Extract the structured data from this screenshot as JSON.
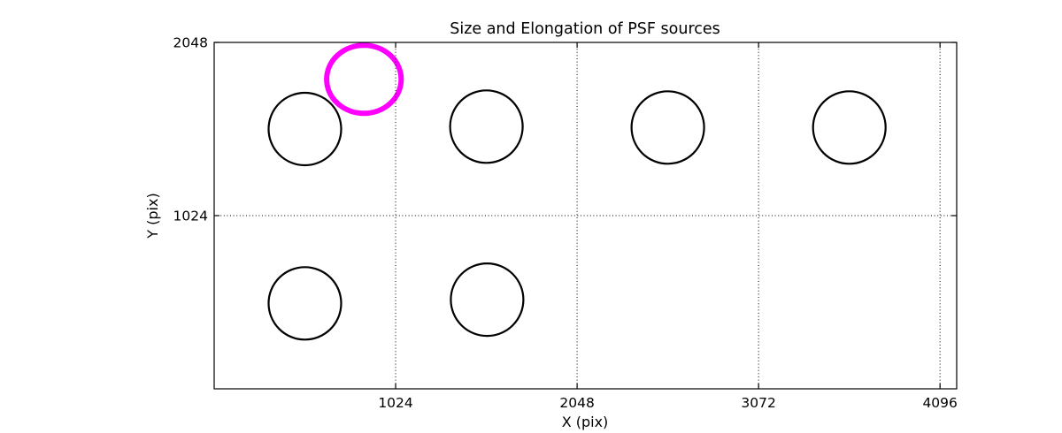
{
  "figure": {
    "background": "#ffffff",
    "axis_color": "#000000"
  },
  "chart_data": {
    "type": "scatter",
    "title": "Size and Elongation of PSF sources",
    "xlabel": "X (pix)",
    "ylabel": "Y (pix)",
    "xlim": [
      0,
      4190
    ],
    "ylim": [
      0,
      2048
    ],
    "x_ticks": [
      1024,
      2048,
      3072,
      4096
    ],
    "y_ticks": [
      1024,
      2048
    ],
    "grid": "dotted",
    "grid_color": "#000000",
    "legend": "none",
    "sources": [
      {
        "x": 512,
        "y": 1536,
        "rx": 205,
        "ry": 214,
        "color": "#000000",
        "lw": 2.2,
        "kind": "psf-source"
      },
      {
        "x": 1536,
        "y": 1550,
        "rx": 205,
        "ry": 214,
        "color": "#000000",
        "lw": 2.2,
        "kind": "psf-source"
      },
      {
        "x": 2560,
        "y": 1545,
        "rx": 205,
        "ry": 214,
        "color": "#000000",
        "lw": 2.2,
        "kind": "psf-source"
      },
      {
        "x": 3584,
        "y": 1545,
        "rx": 205,
        "ry": 214,
        "color": "#000000",
        "lw": 2.2,
        "kind": "psf-source"
      },
      {
        "x": 512,
        "y": 505,
        "rx": 205,
        "ry": 214,
        "color": "#000000",
        "lw": 2.2,
        "kind": "psf-source"
      },
      {
        "x": 1540,
        "y": 527,
        "rx": 205,
        "ry": 214,
        "color": "#000000",
        "lw": 2.2,
        "kind": "psf-source"
      },
      {
        "x": 845,
        "y": 1830,
        "rx": 210,
        "ry": 201,
        "color": "#ff00ff",
        "lw": 6,
        "kind": "highlighted-source"
      }
    ]
  }
}
